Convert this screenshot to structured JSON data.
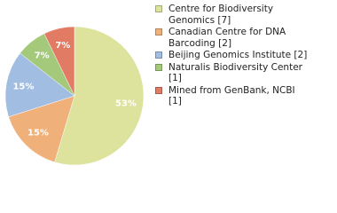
{
  "chart_data": {
    "type": "pie",
    "categories": [
      "Centre for Biodiversity Genomics [7]",
      "Canadian Centre for DNA Barcoding [2]",
      "Beijing Genomics Institute [2]",
      "Naturalis Biodiversity Center [1]",
      "Mined from GenBank, NCBI [1]"
    ],
    "values": [
      53,
      15,
      15,
      7,
      7
    ],
    "value_labels": [
      "53%",
      "15%",
      "15%",
      "7%",
      "7%"
    ],
    "colors": [
      "#dde39d",
      "#efb07a",
      "#a1bde2",
      "#a4c97b",
      "#e17b64"
    ]
  }
}
